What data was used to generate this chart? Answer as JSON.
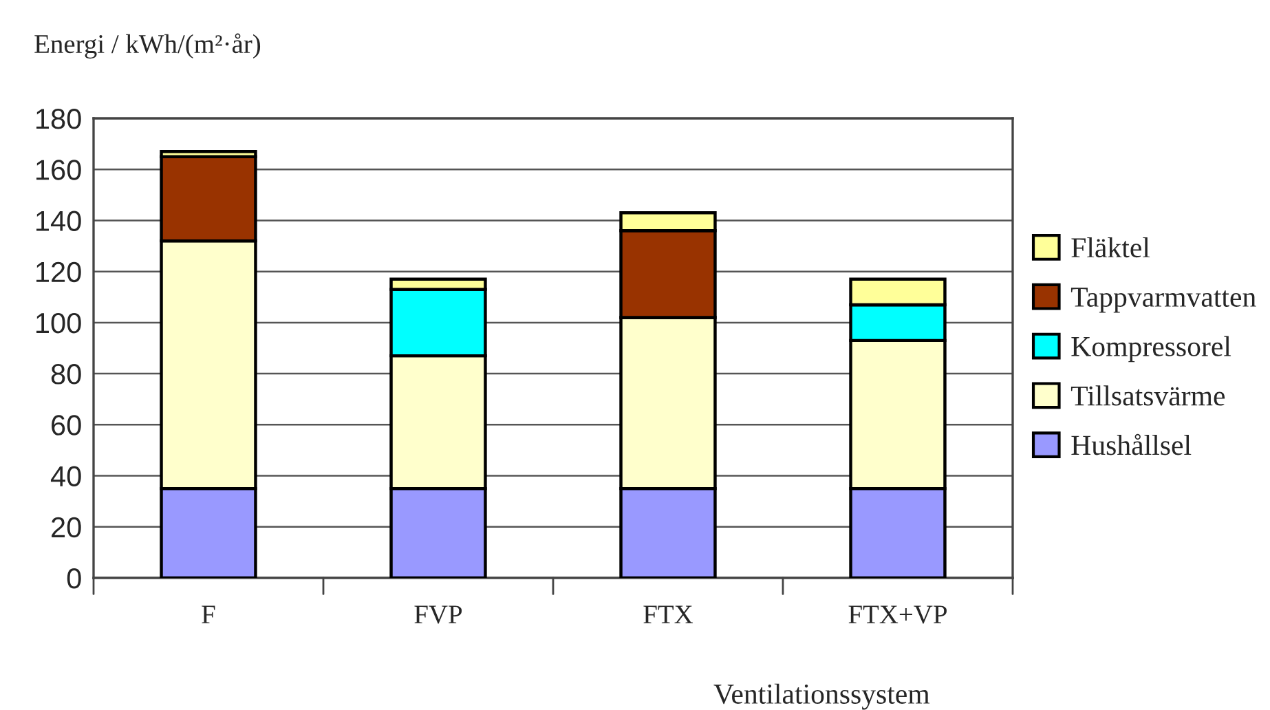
{
  "chart_data": {
    "type": "bar",
    "stacked": true,
    "xlabel": "Ventilationssystem",
    "ylabel": "Energi / kWh/(m²·år)",
    "categories": [
      "F",
      "FVP",
      "FTX",
      "FTX+VP"
    ],
    "series": [
      {
        "name": "Hushållsel",
        "color": "#9999ff",
        "values": [
          35,
          35,
          35,
          35
        ]
      },
      {
        "name": "Tillsatsvärme",
        "color": "#ffffcc",
        "values": [
          97,
          52,
          67,
          58
        ]
      },
      {
        "name": "Kompressorel",
        "color": "#00ffff",
        "values": [
          0,
          26,
          0,
          14
        ]
      },
      {
        "name": "Tappvarmvatten",
        "color": "#993300",
        "values": [
          33,
          0,
          34,
          0
        ]
      },
      {
        "name": "Fläktel",
        "color": "#ffff99",
        "values": [
          2,
          4,
          7,
          10
        ]
      }
    ],
    "ylim": [
      0,
      180
    ],
    "yticks": [
      0,
      20,
      40,
      60,
      80,
      100,
      120,
      140,
      160,
      180
    ],
    "grid": "y",
    "legend": "right"
  }
}
